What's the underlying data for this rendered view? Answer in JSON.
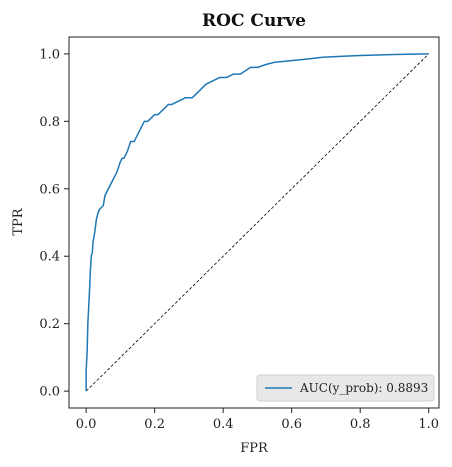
{
  "chart_data": {
    "type": "line",
    "title": "ROC Curve",
    "xlabel": "FPR",
    "ylabel": "TPR",
    "xlim": [
      -0.05,
      1.03
    ],
    "ylim": [
      -0.05,
      1.05
    ],
    "xticks": [
      0.0,
      0.2,
      0.4,
      0.6,
      0.8,
      1.0
    ],
    "yticks": [
      0.0,
      0.2,
      0.4,
      0.6,
      0.8,
      1.0
    ],
    "xtick_labels": [
      "0.0",
      "0.2",
      "0.4",
      "0.6",
      "0.8",
      "1.0"
    ],
    "ytick_labels": [
      "0.0",
      "0.2",
      "0.4",
      "0.6",
      "0.8",
      "1.0"
    ],
    "grid": false,
    "legend": {
      "position": "lower-right"
    },
    "series": [
      {
        "name": "AUC(y_prob): 0.8893",
        "color": "#1f77b4",
        "x": [
          0.0,
          0.0,
          0.003,
          0.005,
          0.008,
          0.01,
          0.012,
          0.015,
          0.018,
          0.02,
          0.025,
          0.03,
          0.035,
          0.04,
          0.05,
          0.055,
          0.06,
          0.065,
          0.07,
          0.08,
          0.09,
          0.1,
          0.105,
          0.11,
          0.12,
          0.13,
          0.14,
          0.15,
          0.16,
          0.17,
          0.18,
          0.2,
          0.21,
          0.22,
          0.23,
          0.24,
          0.25,
          0.27,
          0.29,
          0.31,
          0.33,
          0.35,
          0.37,
          0.39,
          0.41,
          0.43,
          0.45,
          0.48,
          0.5,
          0.53,
          0.55,
          0.6,
          0.65,
          0.69,
          0.75,
          0.8,
          0.9,
          1.0
        ],
        "y": [
          0.0,
          0.06,
          0.12,
          0.2,
          0.26,
          0.3,
          0.35,
          0.4,
          0.41,
          0.44,
          0.47,
          0.51,
          0.53,
          0.54,
          0.55,
          0.58,
          0.59,
          0.6,
          0.61,
          0.63,
          0.65,
          0.68,
          0.69,
          0.69,
          0.71,
          0.74,
          0.74,
          0.76,
          0.78,
          0.8,
          0.8,
          0.82,
          0.82,
          0.83,
          0.84,
          0.85,
          0.85,
          0.86,
          0.87,
          0.87,
          0.89,
          0.91,
          0.92,
          0.93,
          0.93,
          0.94,
          0.94,
          0.96,
          0.96,
          0.97,
          0.975,
          0.98,
          0.985,
          0.99,
          0.993,
          0.995,
          0.998,
          1.0
        ]
      },
      {
        "name": "",
        "color": "#000000",
        "style": "dashed",
        "x": [
          0.0,
          1.0
        ],
        "y": [
          0.0,
          1.0
        ]
      }
    ]
  }
}
